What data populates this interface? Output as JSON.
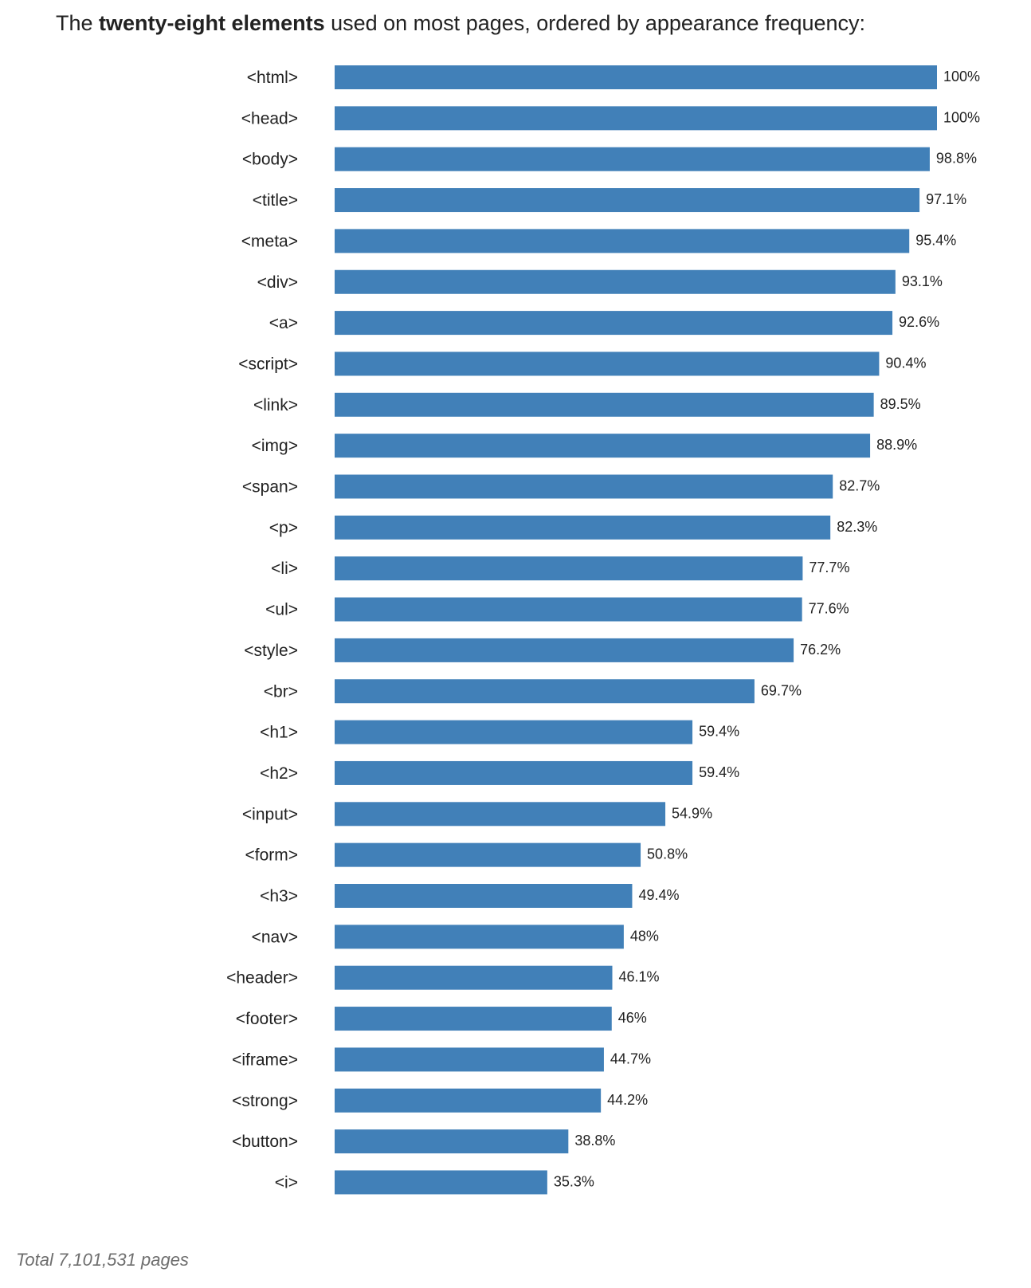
{
  "header": {
    "title_prefix": "The ",
    "title_bold": "twenty-eight elements",
    "title_suffix": " used on most pages, ordered by appearance frequency:"
  },
  "footer": {
    "total_text": "Total 7,101,531 pages"
  },
  "colors": {
    "bar": "#4180b8",
    "text": "#222222",
    "footer_text": "#6e6e6e"
  },
  "chart_data": {
    "type": "bar",
    "orientation": "horizontal",
    "title": "The twenty-eight elements used on most pages, ordered by appearance frequency:",
    "xlabel": "",
    "ylabel": "",
    "xlim": [
      0,
      100
    ],
    "grid": false,
    "unit": "%",
    "categories": [
      "<html>",
      "<head>",
      "<body>",
      "<title>",
      "<meta>",
      "<div>",
      "<a>",
      "<script>",
      "<link>",
      "<img>",
      "<span>",
      "<p>",
      "<li>",
      "<ul>",
      "<style>",
      "<br>",
      "<h1>",
      "<h2>",
      "<input>",
      "<form>",
      "<h3>",
      "<nav>",
      "<header>",
      "<footer>",
      "<iframe>",
      "<strong>",
      "<button>",
      "<i>"
    ],
    "values": [
      100,
      100,
      98.8,
      97.1,
      95.4,
      93.1,
      92.6,
      90.4,
      89.5,
      88.9,
      82.7,
      82.3,
      77.7,
      77.6,
      76.2,
      69.7,
      59.4,
      59.4,
      54.9,
      50.8,
      49.4,
      48,
      46.1,
      46,
      44.7,
      44.2,
      38.8,
      35.3
    ],
    "value_labels": [
      "100%",
      "100%",
      "98.8%",
      "97.1%",
      "95.4%",
      "93.1%",
      "92.6%",
      "90.4%",
      "89.5%",
      "88.9%",
      "82.7%",
      "82.3%",
      "77.7%",
      "77.6%",
      "76.2%",
      "69.7%",
      "59.4%",
      "59.4%",
      "54.9%",
      "50.8%",
      "49.4%",
      "48%",
      "46.1%",
      "46%",
      "44.7%",
      "44.2%",
      "38.8%",
      "35.3%"
    ]
  }
}
